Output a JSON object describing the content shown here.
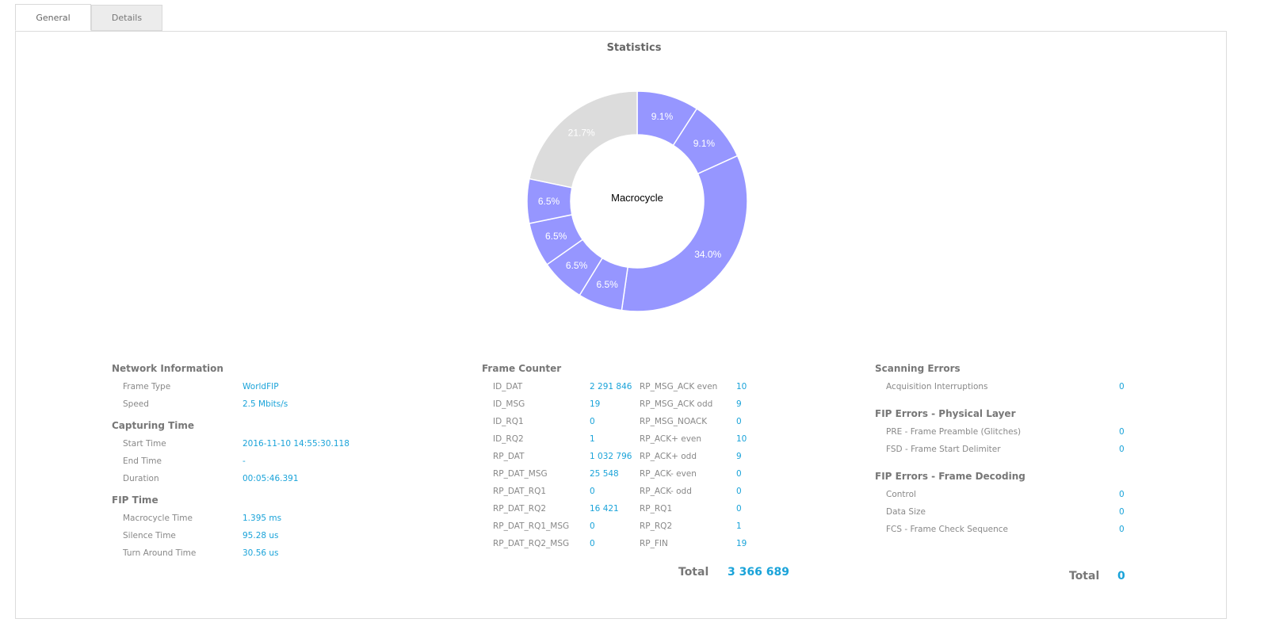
{
  "tabs": [
    {
      "label": "General",
      "active": true
    },
    {
      "label": "Details",
      "active": false
    }
  ],
  "statistics": {
    "title": "Statistics"
  },
  "chart_data": {
    "type": "pie",
    "donut": true,
    "center_label": "Macrocycle",
    "slices": [
      {
        "label": "9.1%",
        "value": 9.1,
        "color": "#9696ff"
      },
      {
        "label": "9.1%",
        "value": 9.1,
        "color": "#9696ff"
      },
      {
        "label": "34.0%",
        "value": 34.0,
        "color": "#9696ff"
      },
      {
        "label": "6.5%",
        "value": 6.5,
        "color": "#9696ff"
      },
      {
        "label": "6.5%",
        "value": 6.5,
        "color": "#9696ff"
      },
      {
        "label": "6.5%",
        "value": 6.5,
        "color": "#9696ff"
      },
      {
        "label": "6.5%",
        "value": 6.5,
        "color": "#9696ff"
      },
      {
        "label": "21.7%",
        "value": 21.7,
        "color": "#dcdcdc"
      }
    ]
  },
  "network_info": {
    "title": "Network Information",
    "rows": [
      {
        "label": "Frame Type",
        "value": "WorldFIP"
      },
      {
        "label": "Speed",
        "value": "2.5 Mbits/s"
      }
    ]
  },
  "capturing_time": {
    "title": "Capturing Time",
    "rows": [
      {
        "label": "Start Time",
        "value": "2016-11-10 14:55:30.118"
      },
      {
        "label": "End Time",
        "value": "-"
      },
      {
        "label": "Duration",
        "value": "00:05:46.391"
      }
    ]
  },
  "fip_time": {
    "title": "FIP Time",
    "rows": [
      {
        "label": "Macrocycle Time",
        "value": "1.395 ms"
      },
      {
        "label": "Silence Time",
        "value": "95.28 us"
      },
      {
        "label": "Turn Around Time",
        "value": "30.56 us"
      }
    ]
  },
  "frame_counter": {
    "title": "Frame Counter",
    "left": [
      {
        "label": "ID_DAT",
        "value": "2 291 846"
      },
      {
        "label": "ID_MSG",
        "value": "19"
      },
      {
        "label": "ID_RQ1",
        "value": "0"
      },
      {
        "label": "ID_RQ2",
        "value": "1"
      },
      {
        "label": "RP_DAT",
        "value": "1 032 796"
      },
      {
        "label": "RP_DAT_MSG",
        "value": "25 548"
      },
      {
        "label": "RP_DAT_RQ1",
        "value": "0"
      },
      {
        "label": "RP_DAT_RQ2",
        "value": "16 421"
      },
      {
        "label": "RP_DAT_RQ1_MSG",
        "value": "0"
      },
      {
        "label": "RP_DAT_RQ2_MSG",
        "value": "0"
      }
    ],
    "right": [
      {
        "label": "RP_MSG_ACK even",
        "value": "10"
      },
      {
        "label": "RP_MSG_ACK odd",
        "value": "9"
      },
      {
        "label": "RP_MSG_NOACK",
        "value": "0"
      },
      {
        "label": "RP_ACK+ even",
        "value": "10"
      },
      {
        "label": "RP_ACK+ odd",
        "value": "9"
      },
      {
        "label": "RP_ACK- even",
        "value": "0"
      },
      {
        "label": "RP_ACK- odd",
        "value": "0"
      },
      {
        "label": "RP_RQ1",
        "value": "0"
      },
      {
        "label": "RP_RQ2",
        "value": "1"
      },
      {
        "label": "RP_FIN",
        "value": "19"
      }
    ],
    "total_label": "Total",
    "total_value": "3 366 689"
  },
  "scanning_errors": {
    "title": "Scanning Errors",
    "rows": [
      {
        "label": "Acquisition Interruptions",
        "value": "0"
      }
    ]
  },
  "fip_errors_physical": {
    "title": "FIP Errors - Physical Layer",
    "rows": [
      {
        "label": "PRE - Frame Preamble (Glitches)",
        "value": "0"
      },
      {
        "label": "FSD - Frame Start Delimiter",
        "value": "0"
      }
    ]
  },
  "fip_errors_decoding": {
    "title": "FIP Errors - Frame Decoding",
    "rows": [
      {
        "label": "Control",
        "value": "0"
      },
      {
        "label": "Data Size",
        "value": "0"
      },
      {
        "label": "FCS - Frame Check Sequence",
        "value": "0"
      }
    ]
  },
  "errors_total": {
    "label": "Total",
    "value": "0"
  }
}
